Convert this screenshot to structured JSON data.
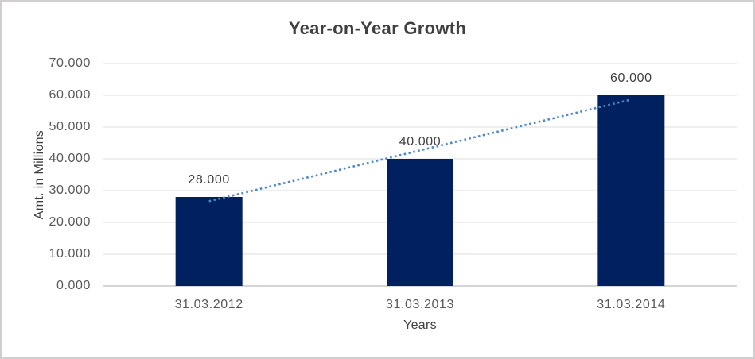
{
  "window": {
    "background": "#FFFFFF",
    "border_color": "#D0CECE"
  },
  "chart_data": {
    "type": "bar",
    "title": "Year-on-Year Growth",
    "xlabel": "Years",
    "ylabel": "Amt. in Millions",
    "categories": [
      "31.03.2012",
      "31.03.2013",
      "31.03.2014"
    ],
    "values": [
      28,
      40,
      60
    ],
    "data_labels": [
      "28.000",
      "40.000",
      "60.000"
    ],
    "ylim": [
      0,
      70
    ],
    "ytick_step": 10,
    "ytick_labels": [
      "0.000",
      "10.000",
      "20.000",
      "30.000",
      "40.000",
      "50.000",
      "60.000",
      "70.000"
    ],
    "grid": "horizontal-gridlines",
    "legend": "none",
    "trendline": {
      "type": "linear",
      "style": "dotted"
    },
    "colors": {
      "bar": "#002060",
      "trendline": "#4E86C8",
      "gridline": "#DDDDDD",
      "axis_line": "#C9C7C7",
      "title_text": "#404040",
      "tick_text": "#595959",
      "data_label_text": "#404040",
      "axis_title_text": "#404040"
    }
  }
}
